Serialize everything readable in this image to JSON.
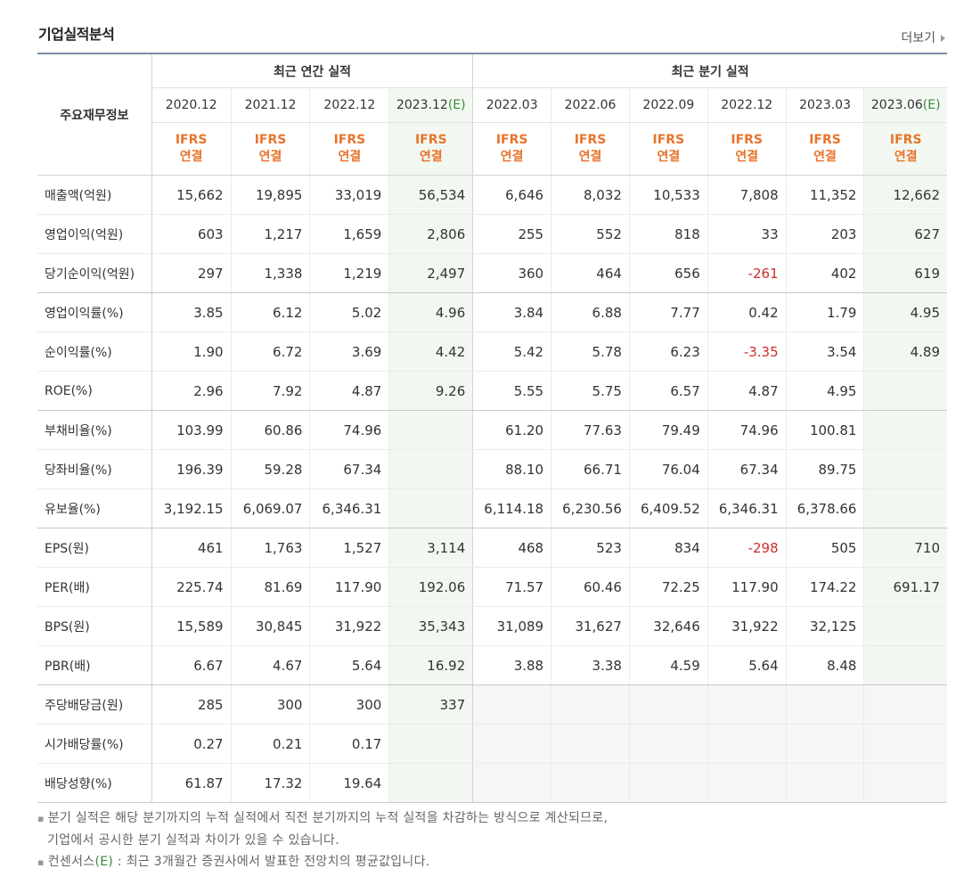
{
  "title": "기업실적분석",
  "more_label": "더보기",
  "header": {
    "row_header": "주요재무정보",
    "annual_group": "최근 연간 실적",
    "quarter_group": "최근 분기 실적",
    "annual_periods": [
      "2020.12",
      "2021.12",
      "2022.12",
      "2023.12"
    ],
    "quarter_periods": [
      "2022.03",
      "2022.06",
      "2022.09",
      "2022.12",
      "2023.03",
      "2023.06"
    ],
    "estimate_mark": "(E)",
    "ifrs": "IFRS",
    "consolidated": "연결"
  },
  "rows": [
    {
      "label": "매출액(억원)",
      "values": [
        "15,662",
        "19,895",
        "33,019",
        "56,534",
        "6,646",
        "8,032",
        "10,533",
        "7,808",
        "11,352",
        "12,662"
      ]
    },
    {
      "label": "영업이익(억원)",
      "values": [
        "603",
        "1,217",
        "1,659",
        "2,806",
        "255",
        "552",
        "818",
        "33",
        "203",
        "627"
      ]
    },
    {
      "label": "당기순이익(억원)",
      "values": [
        "297",
        "1,338",
        "1,219",
        "2,497",
        "360",
        "464",
        "656",
        "-261",
        "402",
        "619"
      ]
    },
    {
      "label": "영업이익률(%)",
      "values": [
        "3.85",
        "6.12",
        "5.02",
        "4.96",
        "3.84",
        "6.88",
        "7.77",
        "0.42",
        "1.79",
        "4.95"
      ]
    },
    {
      "label": "순이익률(%)",
      "values": [
        "1.90",
        "6.72",
        "3.69",
        "4.42",
        "5.42",
        "5.78",
        "6.23",
        "-3.35",
        "3.54",
        "4.89"
      ]
    },
    {
      "label": "ROE(%)",
      "values": [
        "2.96",
        "7.92",
        "4.87",
        "9.26",
        "5.55",
        "5.75",
        "6.57",
        "4.87",
        "4.95",
        ""
      ]
    },
    {
      "label": "부채비율(%)",
      "values": [
        "103.99",
        "60.86",
        "74.96",
        "",
        "61.20",
        "77.63",
        "79.49",
        "74.96",
        "100.81",
        ""
      ]
    },
    {
      "label": "당좌비율(%)",
      "values": [
        "196.39",
        "59.28",
        "67.34",
        "",
        "88.10",
        "66.71",
        "76.04",
        "67.34",
        "89.75",
        ""
      ]
    },
    {
      "label": "유보율(%)",
      "values": [
        "3,192.15",
        "6,069.07",
        "6,346.31",
        "",
        "6,114.18",
        "6,230.56",
        "6,409.52",
        "6,346.31",
        "6,378.66",
        ""
      ]
    },
    {
      "label": "EPS(원)",
      "values": [
        "461",
        "1,763",
        "1,527",
        "3,114",
        "468",
        "523",
        "834",
        "-298",
        "505",
        "710"
      ]
    },
    {
      "label": "PER(배)",
      "values": [
        "225.74",
        "81.69",
        "117.90",
        "192.06",
        "71.57",
        "60.46",
        "72.25",
        "117.90",
        "174.22",
        "691.17"
      ]
    },
    {
      "label": "BPS(원)",
      "values": [
        "15,589",
        "30,845",
        "31,922",
        "35,343",
        "31,089",
        "31,627",
        "32,646",
        "31,922",
        "32,125",
        ""
      ]
    },
    {
      "label": "PBR(배)",
      "values": [
        "6.67",
        "4.67",
        "5.64",
        "16.92",
        "3.88",
        "3.38",
        "4.59",
        "5.64",
        "8.48",
        ""
      ]
    },
    {
      "label": "주당배당금(원)",
      "values": [
        "285",
        "300",
        "300",
        "337",
        "",
        "",
        "",
        "",
        "",
        ""
      ]
    },
    {
      "label": "시가배당률(%)",
      "values": [
        "0.27",
        "0.21",
        "0.17",
        "",
        "",
        "",
        "",
        "",
        "",
        ""
      ]
    },
    {
      "label": "배당성향(%)",
      "values": [
        "61.87",
        "17.32",
        "19.64",
        "",
        "",
        "",
        "",
        "",
        "",
        ""
      ]
    }
  ],
  "notes": {
    "line1": "분기 실적은 해당 분기까지의 누적 실적에서 직전 분기까지의 누적 실적을 차감하는 방식으로 계산되므로,",
    "line2": "기업에서 공시한 분기 실적과 차이가 있을 수 있습니다.",
    "line3_prefix": "컨센서스",
    "line3_mark": "(E)",
    "line3_rest": " : 최근 3개월간 증권사에서 발표한 전망치의 평균값입니다."
  },
  "colors": {
    "accent_ifrs": "#e8742b",
    "negative": "#d12b2b",
    "estimate_bg": "#f2f8f1",
    "estimate_text": "#3a8a3a"
  }
}
